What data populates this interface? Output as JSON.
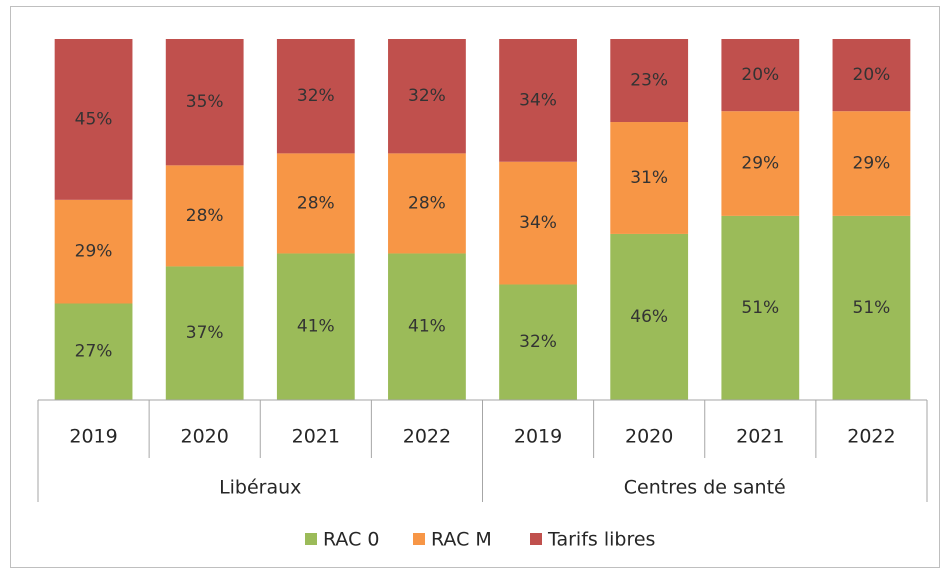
{
  "chart_data": {
    "type": "stacked_bar_percent",
    "groups": [
      {
        "name": "Libéraux",
        "categories": [
          "2019",
          "2020",
          "2021",
          "2022"
        ]
      },
      {
        "name": "Centres de santé",
        "categories": [
          "2019",
          "2020",
          "2021",
          "2022"
        ]
      }
    ],
    "series": [
      {
        "name": "RAC 0",
        "color": "#9bbb59",
        "values": [
          27,
          37,
          41,
          41,
          32,
          46,
          51,
          51
        ],
        "value_labels": [
          "27%",
          "37%",
          "41%",
          "41%",
          "32%",
          "46%",
          "51%",
          "51%"
        ]
      },
      {
        "name": "RAC M",
        "color": "#f79646",
        "values": [
          29,
          28,
          28,
          28,
          34,
          31,
          29,
          29
        ],
        "value_labels": [
          "29%",
          "28%",
          "28%",
          "28%",
          "34%",
          "31%",
          "29%",
          "29%"
        ]
      },
      {
        "name": "Tarifs libres",
        "color": "#c0504d",
        "values": [
          45,
          35,
          32,
          32,
          34,
          23,
          20,
          20
        ],
        "value_labels": [
          "45%",
          "35%",
          "32%",
          "32%",
          "34%",
          "23%",
          "20%",
          "20%"
        ]
      }
    ],
    "legend": "bottom"
  }
}
